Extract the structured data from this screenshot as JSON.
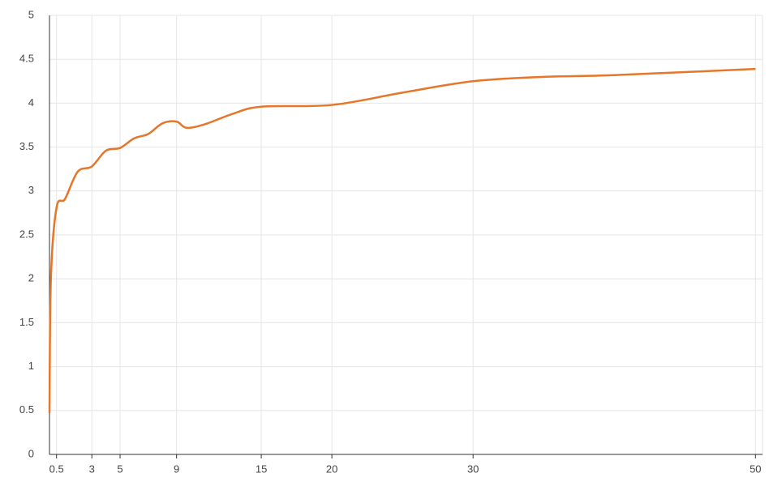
{
  "chart_data": {
    "type": "line",
    "x": [
      0,
      0.1,
      0.5,
      1.1,
      2,
      3,
      4,
      5,
      6,
      7,
      8,
      9,
      9.7,
      11,
      13,
      15,
      20,
      25,
      30,
      35,
      40,
      50
    ],
    "series": [
      {
        "color": "#e5762a",
        "values": [
          0.47,
          2.0,
          2.81,
          2.91,
          3.22,
          3.28,
          3.46,
          3.49,
          3.6,
          3.65,
          3.77,
          3.79,
          3.72,
          3.76,
          3.88,
          3.96,
          3.98,
          4.12,
          4.25,
          4.3,
          4.32,
          4.39
        ]
      }
    ],
    "xlim": [
      0,
      50.5
    ],
    "xticks": [
      0.5,
      3,
      5,
      9,
      15,
      20,
      30,
      50
    ],
    "ylim": [
      0,
      5
    ],
    "yticks": [
      0,
      0.5,
      1,
      1.5,
      2,
      2.5,
      3,
      3.5,
      4,
      4.5,
      5
    ],
    "grid": true
  }
}
